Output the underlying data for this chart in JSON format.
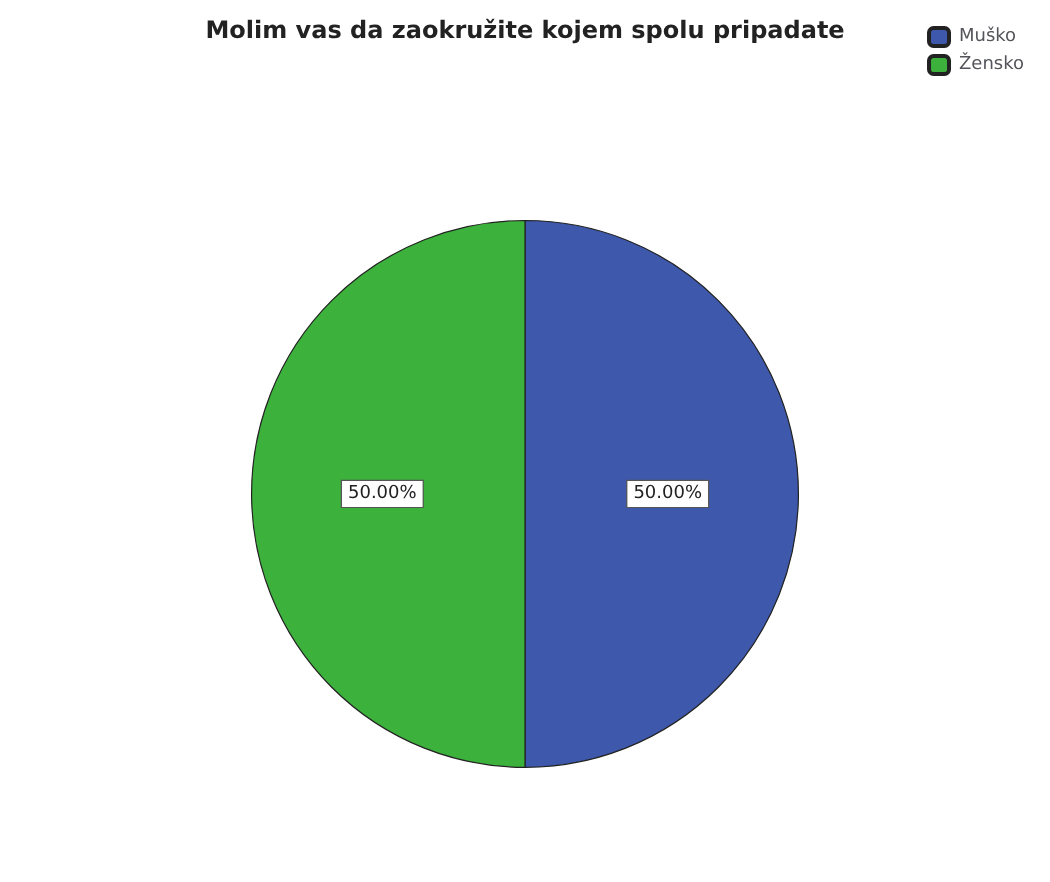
{
  "chart_data": {
    "type": "pie",
    "title": "Molim vas da zaokružite kojem spolu pripadate",
    "categories": [
      "Muško",
      "Žensko"
    ],
    "values": [
      50,
      50
    ],
    "colors": [
      "#3e58ac",
      "#3cb13c"
    ],
    "value_labels": [
      "50.00%",
      "50.00%"
    ],
    "legend": "top right"
  }
}
